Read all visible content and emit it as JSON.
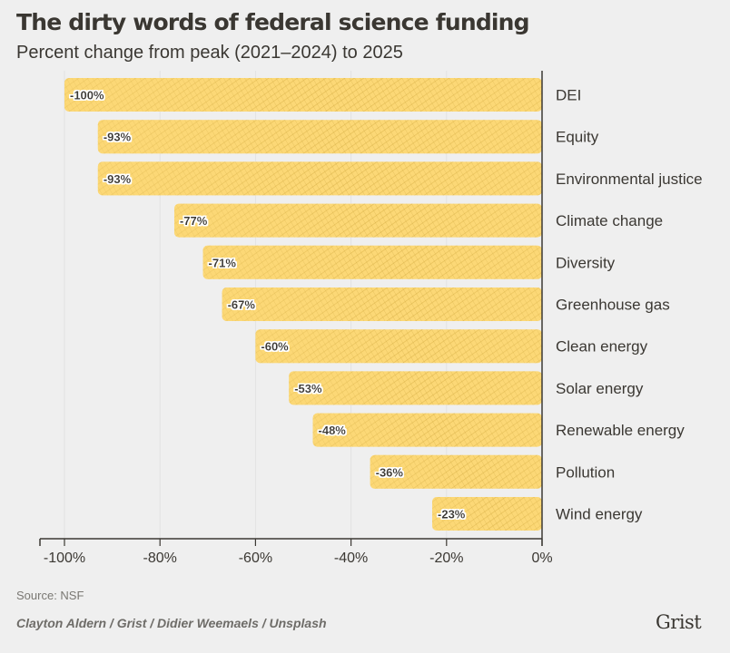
{
  "header": {
    "title": "The dirty words of federal science funding",
    "subtitle": "Percent change from peak (2021–2024) to 2025"
  },
  "footer": {
    "source": "Source: NSF",
    "credit": "Clayton Aldern / Grist / Didier Weemaels / Unsplash",
    "logo": "Grist"
  },
  "colors": {
    "bar_light": "#fcd876",
    "bar_dark": "#c9a032",
    "axis": "#3b3833",
    "grid": "#e2e2e2",
    "background": "#efefef"
  },
  "chart_data": {
    "type": "bar",
    "orientation": "horizontal",
    "title": "The dirty words of federal science funding",
    "subtitle": "Percent change from peak (2021–2024) to 2025",
    "xlabel": "",
    "ylabel": "",
    "xlim": [
      -105,
      0
    ],
    "xticks": [
      -100,
      -80,
      -60,
      -40,
      -20,
      0
    ],
    "xtick_labels": [
      "-100%",
      "-80%",
      "-60%",
      "-40%",
      "-20%",
      "0%"
    ],
    "grid": true,
    "categories": [
      "DEI",
      "Equity",
      "Environmental justice",
      "Climate change",
      "Diversity",
      "Greenhouse gas",
      "Clean energy",
      "Solar energy",
      "Renewable energy",
      "Pollution",
      "Wind energy"
    ],
    "values": [
      -100,
      -93,
      -93,
      -77,
      -71,
      -67,
      -60,
      -53,
      -48,
      -36,
      -23
    ],
    "data_labels": [
      "-100%",
      "-93%",
      "-93%",
      "-77%",
      "-71%",
      "-67%",
      "-60%",
      "-53%",
      "-48%",
      "-36%",
      "-23%"
    ],
    "category_label_position": "right"
  }
}
